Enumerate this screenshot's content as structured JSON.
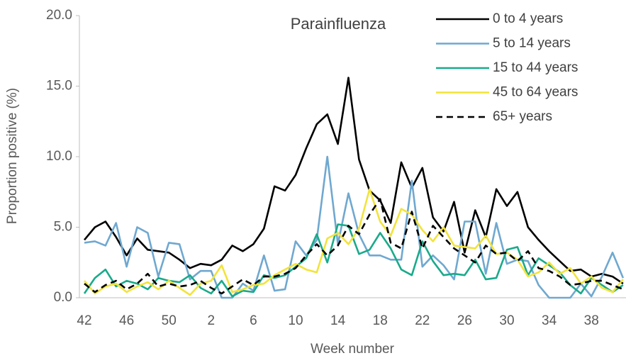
{
  "chart_data": {
    "type": "line",
    "title": "Parainfluenza",
    "x_label": "Week number",
    "y_label": "Proportion positive (%)",
    "categories": [
      "42",
      null,
      null,
      null,
      "46",
      null,
      null,
      null,
      "50",
      null,
      null,
      null,
      "2",
      null,
      null,
      null,
      "6",
      null,
      null,
      null,
      "10",
      null,
      null,
      null,
      "14",
      null,
      null,
      null,
      "18",
      null,
      null,
      null,
      "22",
      null,
      null,
      null,
      "26",
      null,
      null,
      null,
      "30",
      null,
      null,
      null,
      "34",
      null,
      null,
      null,
      "38",
      null,
      null,
      null
    ],
    "ylim": [
      0,
      20
    ],
    "yticks": [
      {
        "value": 0,
        "label": "0.0"
      },
      {
        "value": 5,
        "label": "5.0"
      },
      {
        "value": 10,
        "label": "10.0"
      },
      {
        "value": 15,
        "label": "15.0"
      },
      {
        "value": 20,
        "label": "20.0"
      }
    ],
    "grid": false,
    "legend": "top-right",
    "series": [
      {
        "name": "0 to 4 years",
        "color": "#000000",
        "line_style": "solid",
        "values": [
          4.1,
          5.0,
          5.4,
          4.3,
          3.0,
          4.2,
          3.4,
          3.3,
          3.2,
          2.7,
          2.1,
          2.4,
          2.3,
          2.7,
          3.7,
          3.3,
          3.8,
          4.9,
          7.9,
          7.6,
          8.7,
          10.6,
          12.3,
          13.0,
          10.9,
          15.6,
          9.8,
          7.6,
          6.9,
          5.3,
          9.6,
          7.8,
          9.2,
          5.7,
          4.7,
          6.8,
          3.2,
          6.2,
          4.3,
          7.7,
          6.5,
          7.5,
          5.0,
          4.1,
          3.3,
          2.6,
          1.9,
          2.0,
          1.5,
          1.7,
          1.5,
          1.0
        ]
      },
      {
        "name": "5 to 14 years",
        "color": "#6fa8d0",
        "line_style": "solid",
        "values": [
          3.9,
          4.0,
          3.7,
          5.3,
          2.2,
          5.0,
          4.6,
          1.5,
          3.9,
          3.8,
          1.3,
          1.9,
          1.9,
          0.0,
          0.0,
          1.0,
          0.5,
          3.0,
          0.5,
          0.6,
          4.0,
          3.0,
          4.1,
          10.0,
          3.8,
          7.4,
          4.5,
          3.0,
          3.0,
          2.7,
          2.7,
          8.3,
          2.2,
          3.0,
          2.3,
          1.3,
          5.4,
          5.4,
          1.7,
          5.3,
          2.4,
          2.7,
          2.6,
          0.9,
          0.0,
          0.0,
          0.0,
          1.0,
          0.1,
          1.5,
          3.2,
          1.4
        ]
      },
      {
        "name": "15 to 44 years",
        "color": "#1aaa8a",
        "line_style": "solid",
        "values": [
          0.3,
          1.4,
          2.0,
          0.8,
          1.2,
          1.0,
          0.6,
          1.4,
          1.2,
          1.1,
          1.6,
          0.7,
          0.3,
          1.2,
          0.1,
          0.5,
          0.4,
          1.6,
          1.4,
          1.6,
          2.2,
          2.8,
          4.5,
          2.5,
          5.2,
          5.1,
          3.1,
          3.4,
          4.6,
          3.5,
          2.0,
          1.6,
          4.0,
          2.6,
          1.6,
          1.7,
          1.6,
          2.7,
          1.3,
          1.4,
          3.4,
          3.6,
          1.6,
          2.8,
          2.3,
          1.8,
          0.9,
          0.3,
          1.4,
          0.9,
          0.4,
          0.9
        ]
      },
      {
        "name": "45 to 64 years",
        "color": "#f2e33c",
        "line_style": "solid",
        "values": [
          1.2,
          0.3,
          0.8,
          1.0,
          0.4,
          0.8,
          1.1,
          0.6,
          1.2,
          0.7,
          0.2,
          1.0,
          1.2,
          2.3,
          0.4,
          0.6,
          0.9,
          1.0,
          1.6,
          2.0,
          2.4,
          2.0,
          1.8,
          4.2,
          4.6,
          3.8,
          4.9,
          7.7,
          5.4,
          4.4,
          6.3,
          5.9,
          4.8,
          4.0,
          5.0,
          3.7,
          3.6,
          3.5,
          4.4,
          3.1,
          3.2,
          2.7,
          1.5,
          1.8,
          2.5,
          1.7,
          2.1,
          1.0,
          1.5,
          0.7,
          0.4,
          1.3
        ]
      },
      {
        "name": "65+ years",
        "color": "#000000",
        "line_style": "dashed",
        "values": [
          1.0,
          0.4,
          0.9,
          1.2,
          0.6,
          1.0,
          1.7,
          0.8,
          1.0,
          0.8,
          0.9,
          1.2,
          0.7,
          0.3,
          0.8,
          1.3,
          0.9,
          1.5,
          1.5,
          1.7,
          2.1,
          3.0,
          3.8,
          3.0,
          3.7,
          5.1,
          4.5,
          5.9,
          7.0,
          3.9,
          3.5,
          6.1,
          3.5,
          5.1,
          4.3,
          3.5,
          3.0,
          2.5,
          3.7,
          3.1,
          3.2,
          2.6,
          3.3,
          2.1,
          1.9,
          1.5,
          0.9,
          1.0,
          1.2,
          1.2,
          0.9,
          0.6
        ]
      }
    ]
  }
}
